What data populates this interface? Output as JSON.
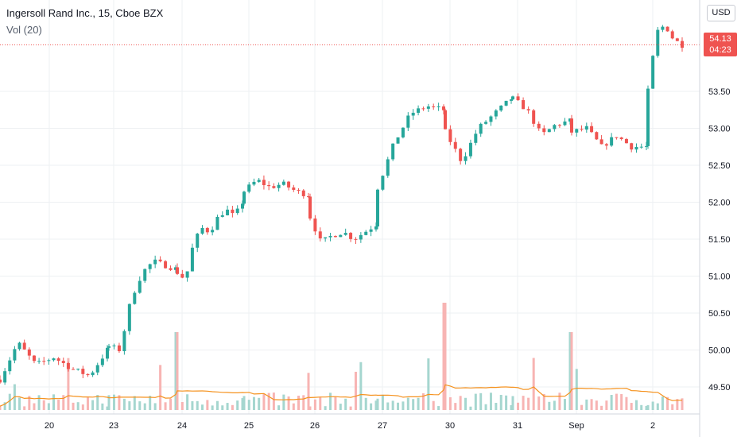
{
  "legend": {
    "title": "Ingersoll Rand Inc., 15, Cboe BZX",
    "vol": "Vol (20)"
  },
  "currency": "USD",
  "last_price": {
    "price": "54.13",
    "countdown": "04:23"
  },
  "colors": {
    "up": "#26a69a",
    "down": "#ef5350",
    "vol_up": "#a5d6cf",
    "vol_down": "#f7b4b3",
    "vol_ma": "#f5921e",
    "grid": "#eef0f3",
    "axis_text": "#131722"
  },
  "chart_data": {
    "type": "candlestick",
    "title": "Ingersoll Rand Inc., 15, Cboe BZX",
    "y_axis": {
      "ticks": [
        49.5,
        50.0,
        50.5,
        51.0,
        51.5,
        52.0,
        52.5,
        53.0,
        53.5
      ]
    },
    "x_axis": {
      "ticks": [
        "20",
        "23",
        "24",
        "25",
        "26",
        "27",
        "30",
        "31",
        "Sep",
        "2"
      ]
    },
    "last_price": 54.13,
    "volume_indicator": "Vol (20)",
    "price_path": [
      [
        "20",
        49.6
      ],
      [
        "20",
        50.1
      ],
      [
        "20",
        49.8
      ],
      [
        "20",
        49.9
      ],
      [
        "20",
        49.75
      ],
      [
        "20",
        49.65
      ],
      [
        "20",
        50.0
      ],
      [
        "23",
        50.05
      ],
      [
        "23",
        50.0
      ],
      [
        "23",
        50.7
      ],
      [
        "23",
        51.05
      ],
      [
        "23",
        51.2
      ],
      [
        "23",
        51.15
      ],
      [
        "23",
        51.1
      ],
      [
        "24",
        51.05
      ],
      [
        "24",
        50.95
      ],
      [
        "24",
        51.45
      ],
      [
        "24",
        51.65
      ],
      [
        "24",
        51.6
      ],
      [
        "24",
        51.8
      ],
      [
        "24",
        51.9
      ],
      [
        "24",
        51.8
      ],
      [
        "24",
        52.0
      ],
      [
        "25",
        52.15
      ],
      [
        "25",
        52.3
      ],
      [
        "25",
        52.2
      ],
      [
        "25",
        52.25
      ],
      [
        "25",
        52.15
      ],
      [
        "25",
        52.1
      ],
      [
        "26",
        51.8
      ],
      [
        "26",
        51.45
      ],
      [
        "26",
        51.55
      ],
      [
        "26",
        51.6
      ],
      [
        "26",
        51.5
      ],
      [
        "26",
        51.6
      ],
      [
        "26",
        51.7
      ],
      [
        "27",
        52.2
      ],
      [
        "27",
        52.8
      ],
      [
        "27",
        53.2
      ],
      [
        "27",
        53.3
      ],
      [
        "27",
        53.25
      ],
      [
        "30",
        52.95
      ],
      [
        "30",
        52.55
      ],
      [
        "30",
        53.0
      ],
      [
        "30",
        53.2
      ],
      [
        "30",
        53.4
      ],
      [
        "31",
        53.4
      ],
      [
        "31",
        53.25
      ],
      [
        "31",
        52.9
      ],
      [
        "31",
        53.05
      ],
      [
        "31",
        53.1
      ],
      [
        "Sep",
        52.95
      ],
      [
        "Sep",
        53.0
      ],
      [
        "Sep",
        52.75
      ],
      [
        "Sep",
        52.9
      ],
      [
        "Sep",
        52.75
      ],
      [
        "Sep",
        52.75
      ],
      [
        "2",
        53.5
      ],
      [
        "2",
        54.3
      ],
      [
        "2",
        54.4
      ],
      [
        "2",
        54.2
      ],
      [
        "2",
        54.13
      ]
    ],
    "volume_spikes": [
      {
        "near": "30",
        "relative": "max"
      },
      {
        "near": "Sep",
        "relative": "high"
      },
      {
        "near": "24",
        "relative": "high"
      }
    ]
  }
}
